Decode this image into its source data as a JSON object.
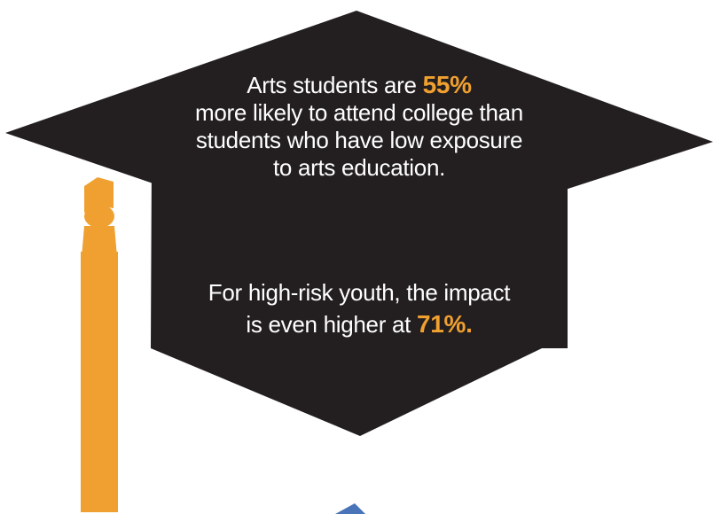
{
  "colors": {
    "cap": "#231f20",
    "tassel": "#f0a030",
    "accent": "#f0a030",
    "green_circle": "#5fbf95",
    "blue_shape": "#4a74b8",
    "text": "#ffffff"
  },
  "stat_top": {
    "line1_pre": "Arts students are ",
    "line1_value": "55%",
    "line2": "more likely to attend college than",
    "line3": "students who have low exposure",
    "line4": "to arts education."
  },
  "stat_bottom": {
    "line1": "For high-risk youth, the impact",
    "line2_pre": "is even higher at ",
    "line2_value": "71%",
    "line2_post": "."
  },
  "icons": {
    "cap": "graduation-cap-icon",
    "tassel": "tassel-icon"
  }
}
